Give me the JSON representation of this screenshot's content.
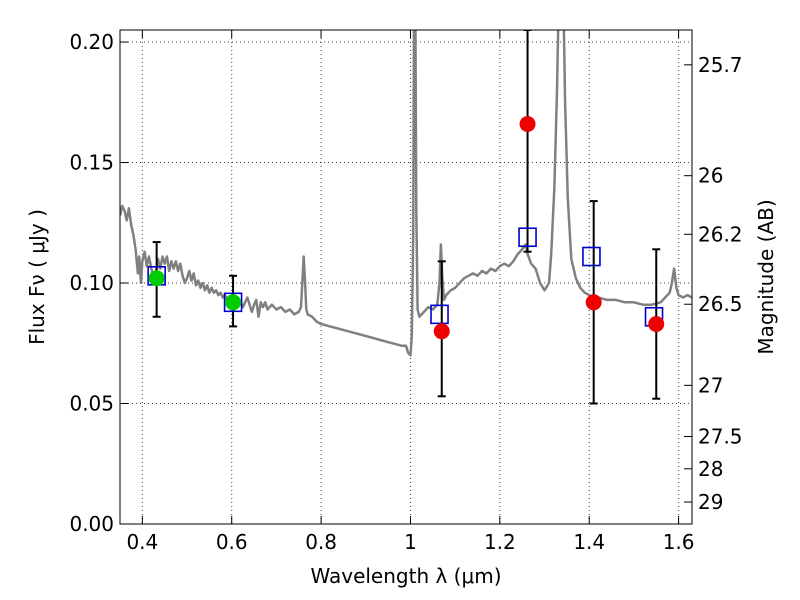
{
  "chart_data": {
    "type": "scatter",
    "xlabel": "Wavelength  λ (μm)",
    "ylabel": "Flux  Fν  ( μJy )",
    "y2label": "Magnitude (AB)",
    "xlim": [
      0.35,
      1.63
    ],
    "ylim": [
      0.0,
      0.205
    ],
    "grid": true,
    "x_ticks": [
      {
        "value": 0.4,
        "label": "0.4"
      },
      {
        "value": 0.6,
        "label": "0.6"
      },
      {
        "value": 0.8,
        "label": "0.8"
      },
      {
        "value": 1.0,
        "label": "1"
      },
      {
        "value": 1.2,
        "label": "1.2"
      },
      {
        "value": 1.4,
        "label": "1.4"
      },
      {
        "value": 1.6,
        "label": "1.6"
      }
    ],
    "y_ticks": [
      {
        "value": 0.0,
        "label": "0.00"
      },
      {
        "value": 0.05,
        "label": "0.05"
      },
      {
        "value": 0.1,
        "label": "0.10"
      },
      {
        "value": 0.15,
        "label": "0.15"
      },
      {
        "value": 0.2,
        "label": "0.20"
      }
    ],
    "y2_ticks": [
      {
        "value": 25.7,
        "label": "25.7"
      },
      {
        "value": 26.0,
        "label": "26"
      },
      {
        "value": 26.2,
        "label": "26.2"
      },
      {
        "value": 26.5,
        "label": "26.5"
      },
      {
        "value": 27.0,
        "label": "27"
      },
      {
        "value": 27.5,
        "label": "27.5"
      },
      {
        "value": 28.0,
        "label": "28"
      },
      {
        "value": 29.0,
        "label": "29"
      }
    ],
    "colors": {
      "template": "#808080",
      "model": "#0000cc",
      "optical": "#00cc00",
      "infrared": "#ee0000",
      "errorbar": "#000000"
    },
    "series": [
      {
        "kind": "template-spectrum",
        "points": [
          [
            0.35,
            0.128
          ],
          [
            0.355,
            0.132
          ],
          [
            0.36,
            0.13
          ],
          [
            0.365,
            0.126
          ],
          [
            0.37,
            0.131
          ],
          [
            0.375,
            0.124
          ],
          [
            0.38,
            0.12
          ],
          [
            0.385,
            0.114
          ],
          [
            0.39,
            0.104
          ],
          [
            0.393,
            0.111
          ],
          [
            0.397,
            0.1
          ],
          [
            0.4,
            0.109
          ],
          [
            0.405,
            0.113
          ],
          [
            0.41,
            0.107
          ],
          [
            0.415,
            0.111
          ],
          [
            0.42,
            0.106
          ],
          [
            0.425,
            0.103
          ],
          [
            0.43,
            0.104
          ],
          [
            0.435,
            0.11
          ],
          [
            0.44,
            0.106
          ],
          [
            0.445,
            0.111
          ],
          [
            0.45,
            0.108
          ],
          [
            0.455,
            0.111
          ],
          [
            0.46,
            0.105
          ],
          [
            0.465,
            0.109
          ],
          [
            0.47,
            0.106
          ],
          [
            0.475,
            0.109
          ],
          [
            0.48,
            0.105
          ],
          [
            0.485,
            0.108
          ],
          [
            0.49,
            0.103
          ],
          [
            0.495,
            0.1
          ],
          [
            0.5,
            0.102
          ],
          [
            0.505,
            0.105
          ],
          [
            0.51,
            0.101
          ],
          [
            0.515,
            0.104
          ],
          [
            0.52,
            0.099
          ],
          [
            0.525,
            0.101
          ],
          [
            0.53,
            0.098
          ],
          [
            0.535,
            0.1
          ],
          [
            0.54,
            0.097
          ],
          [
            0.545,
            0.099
          ],
          [
            0.55,
            0.096
          ],
          [
            0.555,
            0.098
          ],
          [
            0.56,
            0.096
          ],
          [
            0.565,
            0.097
          ],
          [
            0.57,
            0.095
          ],
          [
            0.575,
            0.096
          ],
          [
            0.58,
            0.094
          ],
          [
            0.585,
            0.095
          ],
          [
            0.59,
            0.093
          ],
          [
            0.595,
            0.094
          ],
          [
            0.6,
            0.093
          ],
          [
            0.605,
            0.091
          ],
          [
            0.61,
            0.093
          ],
          [
            0.615,
            0.091
          ],
          [
            0.62,
            0.092
          ],
          [
            0.625,
            0.09
          ],
          [
            0.63,
            0.092
          ],
          [
            0.635,
            0.094
          ],
          [
            0.64,
            0.091
          ],
          [
            0.645,
            0.088
          ],
          [
            0.65,
            0.091
          ],
          [
            0.655,
            0.093
          ],
          [
            0.66,
            0.086
          ],
          [
            0.665,
            0.092
          ],
          [
            0.67,
            0.09
          ],
          [
            0.675,
            0.092
          ],
          [
            0.68,
            0.089
          ],
          [
            0.69,
            0.091
          ],
          [
            0.7,
            0.089
          ],
          [
            0.71,
            0.09
          ],
          [
            0.72,
            0.088
          ],
          [
            0.73,
            0.089
          ],
          [
            0.74,
            0.087
          ],
          [
            0.75,
            0.088
          ],
          [
            0.755,
            0.09
          ],
          [
            0.758,
            0.1
          ],
          [
            0.761,
            0.111
          ],
          [
            0.764,
            0.101
          ],
          [
            0.767,
            0.089
          ],
          [
            0.77,
            0.087
          ],
          [
            0.78,
            0.086
          ],
          [
            0.79,
            0.084
          ],
          [
            0.8,
            0.083
          ],
          [
            0.82,
            0.082
          ],
          [
            0.84,
            0.081
          ],
          [
            0.86,
            0.08
          ],
          [
            0.88,
            0.079
          ],
          [
            0.9,
            0.078
          ],
          [
            0.92,
            0.077
          ],
          [
            0.94,
            0.076
          ],
          [
            0.96,
            0.075
          ],
          [
            0.98,
            0.074
          ],
          [
            0.99,
            0.074
          ],
          [
            0.995,
            0.071
          ],
          [
            1.0,
            0.07
          ],
          [
            1.003,
            0.078
          ],
          [
            1.006,
            0.12
          ],
          [
            1.008,
            0.21
          ],
          [
            1.011,
            0.21
          ],
          [
            1.013,
            0.13
          ],
          [
            1.016,
            0.089
          ],
          [
            1.02,
            0.086
          ],
          [
            1.03,
            0.088
          ],
          [
            1.04,
            0.09
          ],
          [
            1.05,
            0.089
          ],
          [
            1.06,
            0.091
          ],
          [
            1.065,
            0.1
          ],
          [
            1.068,
            0.116
          ],
          [
            1.071,
            0.103
          ],
          [
            1.075,
            0.093
          ],
          [
            1.08,
            0.095
          ],
          [
            1.09,
            0.097
          ],
          [
            1.1,
            0.098
          ],
          [
            1.11,
            0.1
          ],
          [
            1.12,
            0.102
          ],
          [
            1.13,
            0.103
          ],
          [
            1.14,
            0.104
          ],
          [
            1.15,
            0.103
          ],
          [
            1.16,
            0.105
          ],
          [
            1.17,
            0.104
          ],
          [
            1.18,
            0.106
          ],
          [
            1.19,
            0.105
          ],
          [
            1.2,
            0.107
          ],
          [
            1.21,
            0.108
          ],
          [
            1.22,
            0.107
          ],
          [
            1.23,
            0.109
          ],
          [
            1.24,
            0.112
          ],
          [
            1.25,
            0.114
          ],
          [
            1.258,
            0.116
          ],
          [
            1.262,
            0.112
          ],
          [
            1.27,
            0.108
          ],
          [
            1.28,
            0.106
          ],
          [
            1.29,
            0.1
          ],
          [
            1.3,
            0.097
          ],
          [
            1.31,
            0.1
          ],
          [
            1.315,
            0.112
          ],
          [
            1.322,
            0.14
          ],
          [
            1.328,
            0.18
          ],
          [
            1.331,
            0.21
          ],
          [
            1.343,
            0.21
          ],
          [
            1.346,
            0.175
          ],
          [
            1.352,
            0.135
          ],
          [
            1.36,
            0.11
          ],
          [
            1.37,
            0.102
          ],
          [
            1.38,
            0.098
          ],
          [
            1.39,
            0.096
          ],
          [
            1.4,
            0.095
          ],
          [
            1.41,
            0.094
          ],
          [
            1.42,
            0.094
          ],
          [
            1.44,
            0.093
          ],
          [
            1.46,
            0.093
          ],
          [
            1.48,
            0.092
          ],
          [
            1.5,
            0.092
          ],
          [
            1.52,
            0.091
          ],
          [
            1.54,
            0.091
          ],
          [
            1.56,
            0.092
          ],
          [
            1.57,
            0.094
          ],
          [
            1.58,
            0.096
          ],
          [
            1.585,
            0.1
          ],
          [
            1.59,
            0.106
          ],
          [
            1.595,
            0.098
          ],
          [
            1.6,
            0.095
          ],
          [
            1.61,
            0.094
          ],
          [
            1.62,
            0.095
          ],
          [
            1.63,
            0.094
          ]
        ]
      },
      {
        "kind": "model-squares",
        "x": [
          0.432,
          0.603,
          1.065,
          1.262,
          1.405,
          1.545
        ],
        "y": [
          0.103,
          0.092,
          0.087,
          0.119,
          0.111,
          0.086
        ]
      },
      {
        "kind": "optical-points",
        "x": [
          0.432,
          0.603
        ],
        "y": [
          0.102,
          0.092
        ],
        "yerr_low": [
          0.086,
          0.082
        ],
        "yerr_high": [
          0.117,
          0.103
        ]
      },
      {
        "kind": "infrared-points",
        "x": [
          1.07,
          1.262,
          1.41,
          1.55
        ],
        "y": [
          0.08,
          0.166,
          0.092,
          0.083
        ],
        "yerr_low": [
          0.053,
          0.113,
          0.05,
          0.052
        ],
        "yerr_high": [
          0.109,
          0.205,
          0.134,
          0.114
        ]
      }
    ]
  }
}
